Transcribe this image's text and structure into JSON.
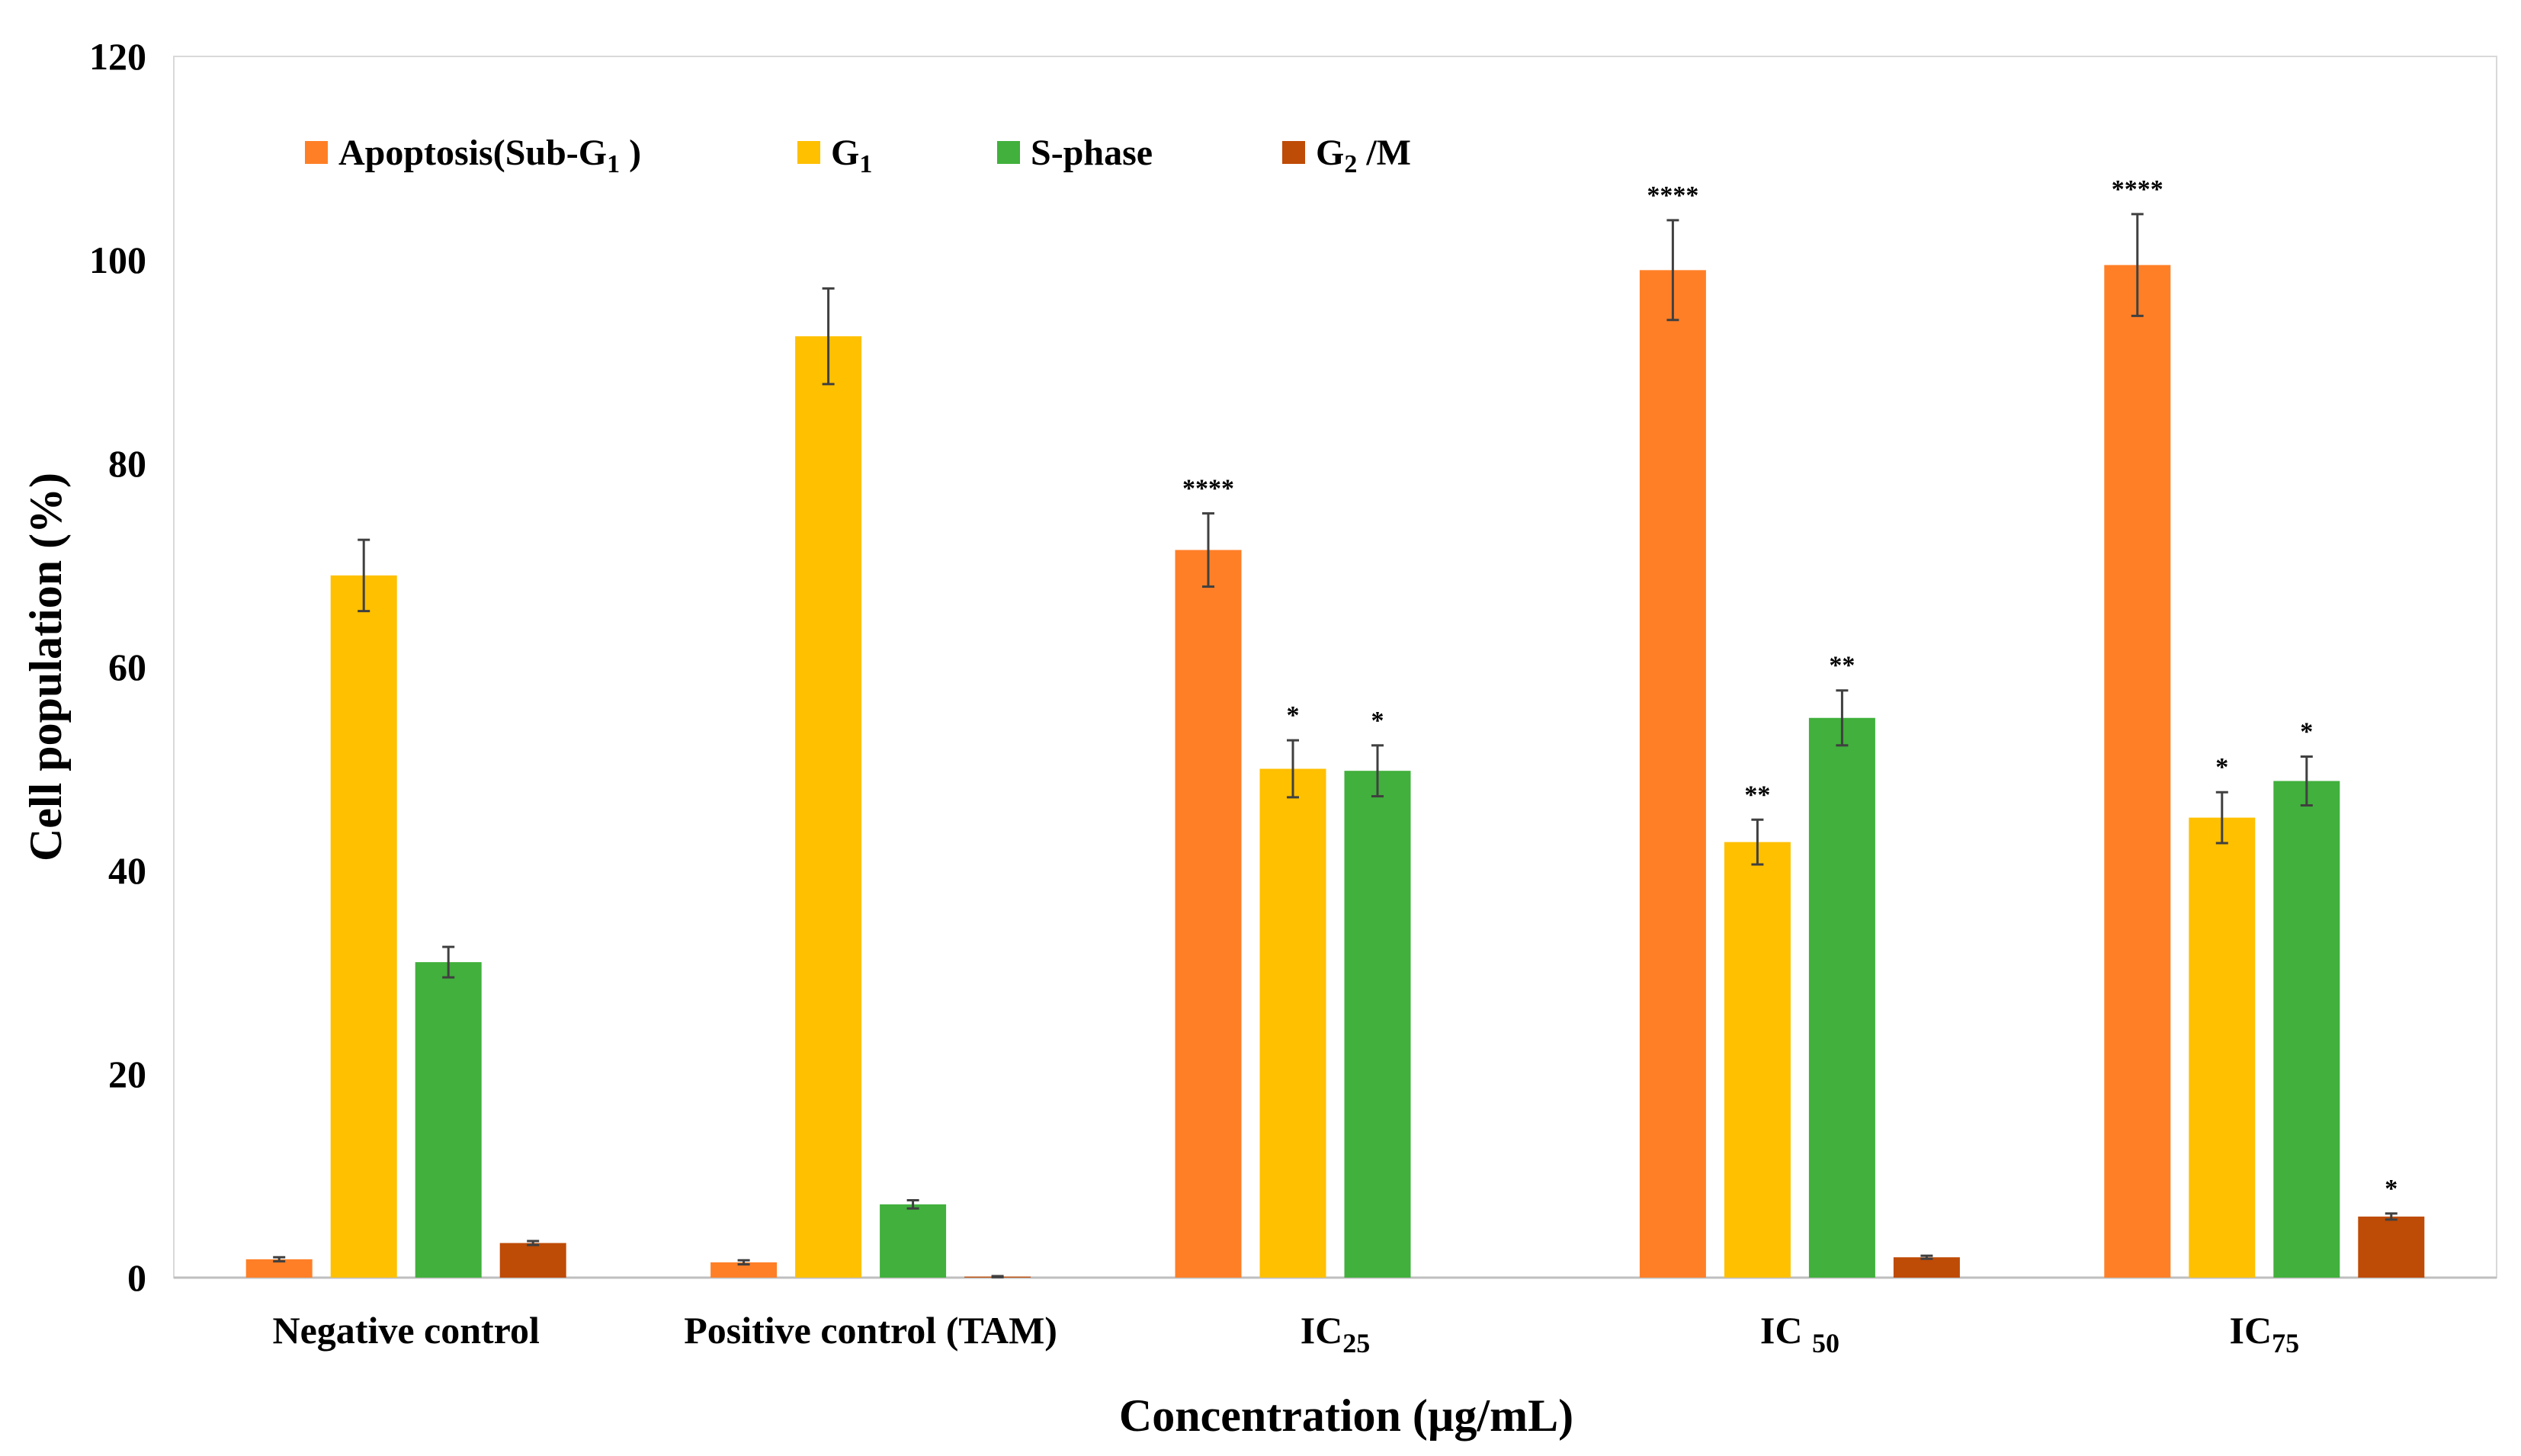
{
  "chart_data": {
    "type": "bar",
    "title": "",
    "xlabel": "Concentration (µg/mL)",
    "ylabel": "Cell population (%)",
    "ylim": [
      0,
      120
    ],
    "yticks": [
      0,
      20,
      40,
      60,
      80,
      100,
      120
    ],
    "grid": false,
    "legend_position": "top-left",
    "categories": [
      {
        "label": "Negative control",
        "base": "Negative control",
        "sub": ""
      },
      {
        "label": "Positive control (TAM)",
        "base": "Positive control (TAM)",
        "sub": ""
      },
      {
        "label": "IC25",
        "base": "IC",
        "sub": "25"
      },
      {
        "label": "IC50",
        "base": "IC ",
        "sub": "50"
      },
      {
        "label": "IC75",
        "base": "IC",
        "sub": "75"
      }
    ],
    "series": [
      {
        "name": "Apoptosis(Sub-G1 )",
        "name_base": "Apoptosis(Sub-G",
        "name_sub": "1",
        "name_tail": " )",
        "color": "#FF7F27",
        "values": [
          1.8,
          1.5,
          71.5,
          99,
          99.5
        ],
        "errors": [
          0.2,
          0.2,
          3.6,
          4.9,
          5
        ],
        "significance": [
          "",
          "",
          "****",
          "****",
          "****"
        ]
      },
      {
        "name": "G1",
        "name_base": "G",
        "name_sub": "1",
        "name_tail": "",
        "color": "#FFC000",
        "values": [
          69,
          92.5,
          50,
          42.8,
          45.2
        ],
        "errors": [
          3.5,
          4.7,
          2.8,
          2.2,
          2.5
        ],
        "significance": [
          "",
          "",
          "*",
          "**",
          "*"
        ]
      },
      {
        "name": "S-phase",
        "name_base": "S-phase",
        "name_sub": "",
        "name_tail": "",
        "color": "#41B03C",
        "values": [
          31,
          7.2,
          49.8,
          55,
          48.8
        ],
        "errors": [
          1.5,
          0.4,
          2.5,
          2.7,
          2.4
        ],
        "significance": [
          "",
          "",
          "*",
          "**",
          "*"
        ]
      },
      {
        "name": "G2 /M",
        "name_base": "G",
        "name_sub": "2",
        "name_tail": " /M",
        "color": "#BE4B06",
        "values": [
          3.4,
          0.1,
          0,
          2,
          6
        ],
        "errors": [
          0.2,
          0.05,
          0,
          0.15,
          0.3
        ],
        "significance": [
          "",
          "",
          "",
          "",
          "*"
        ]
      }
    ]
  }
}
